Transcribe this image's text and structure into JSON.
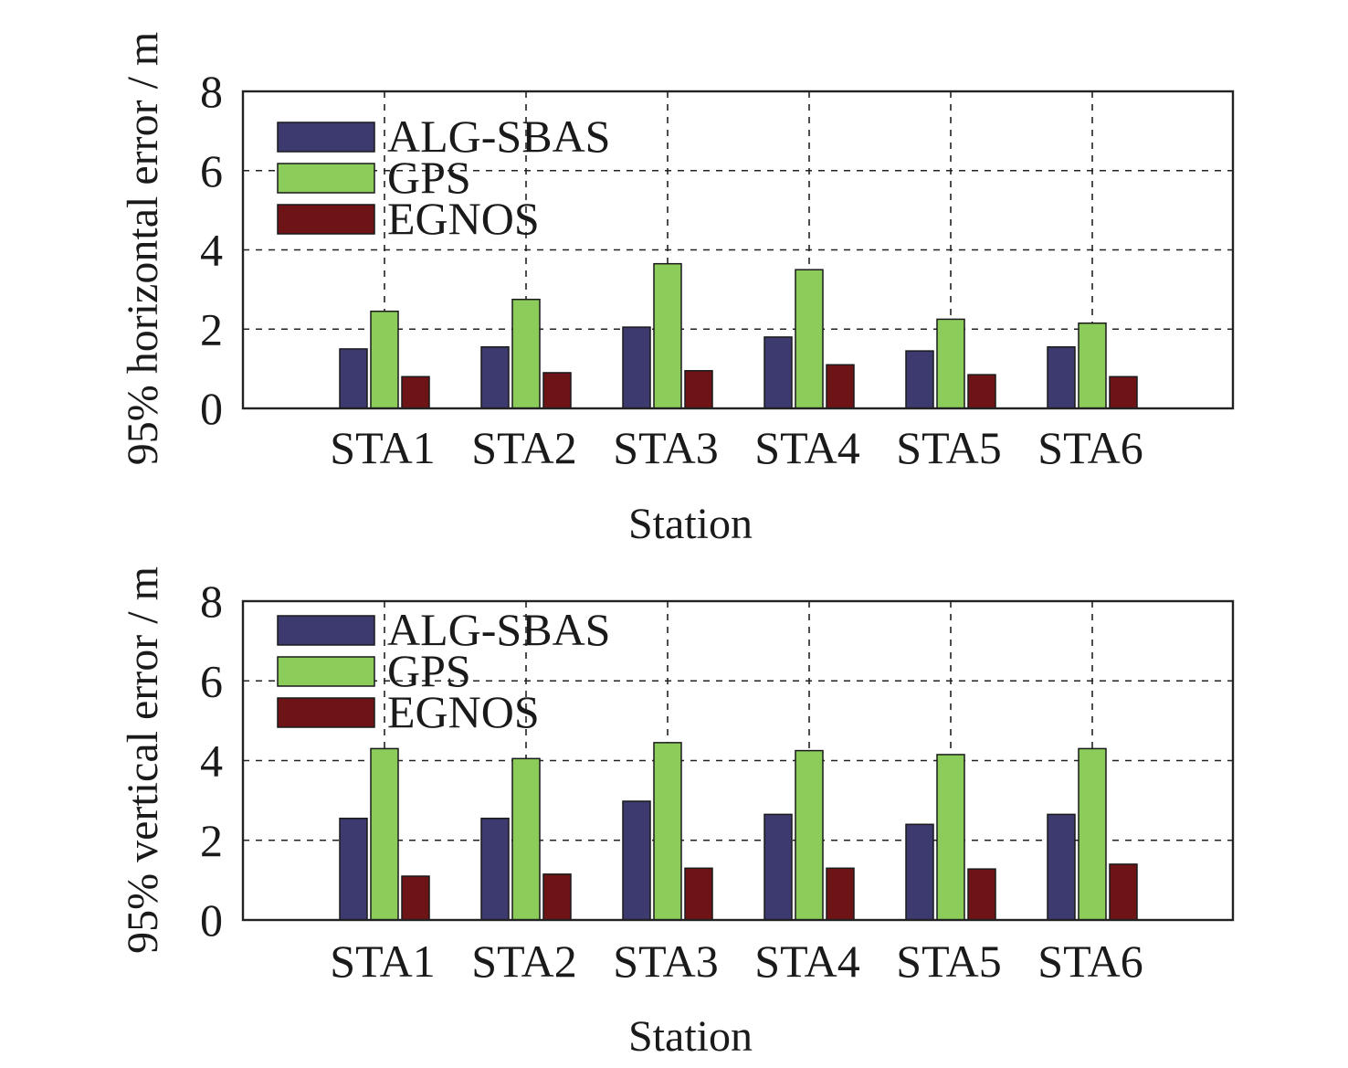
{
  "chart_data": [
    {
      "type": "bar",
      "categories": [
        "STA1",
        "STA2",
        "STA3",
        "STA4",
        "STA5",
        "STA6"
      ],
      "series": [
        {
          "name": "ALG-SBAS",
          "color": "#3c3a6e",
          "values": [
            1.5,
            1.55,
            2.05,
            1.8,
            1.45,
            1.55
          ]
        },
        {
          "name": "GPS",
          "color": "#8ccc5a",
          "values": [
            2.45,
            2.75,
            3.65,
            3.5,
            2.25,
            2.15
          ]
        },
        {
          "name": "EGNOS",
          "color": "#6e1416",
          "values": [
            0.8,
            0.9,
            0.95,
            1.1,
            0.85,
            0.8
          ]
        }
      ],
      "title": "",
      "xlabel": "Station",
      "ylabel": "95% horizontal error / m",
      "ylim": [
        0,
        8
      ],
      "yticks": [
        "0",
        "2",
        "4",
        "6",
        "8"
      ],
      "grid": true,
      "legend_position": "top-left"
    },
    {
      "type": "bar",
      "categories": [
        "STA1",
        "STA2",
        "STA3",
        "STA4",
        "STA5",
        "STA6"
      ],
      "series": [
        {
          "name": "ALG-SBAS",
          "color": "#3c3a6e",
          "values": [
            2.55,
            2.55,
            2.98,
            2.65,
            2.4,
            2.65
          ]
        },
        {
          "name": "GPS",
          "color": "#8ccc5a",
          "values": [
            4.3,
            4.05,
            4.45,
            4.25,
            4.15,
            4.3
          ]
        },
        {
          "name": "EGNOS",
          "color": "#6e1416",
          "values": [
            1.1,
            1.15,
            1.3,
            1.3,
            1.28,
            1.4
          ]
        }
      ],
      "title": "",
      "xlabel": "Station",
      "ylabel": "95% vertical error / m",
      "ylim": [
        0,
        8
      ],
      "yticks": [
        "0",
        "2",
        "4",
        "6",
        "8"
      ],
      "grid": true,
      "legend_position": "top-left"
    }
  ]
}
